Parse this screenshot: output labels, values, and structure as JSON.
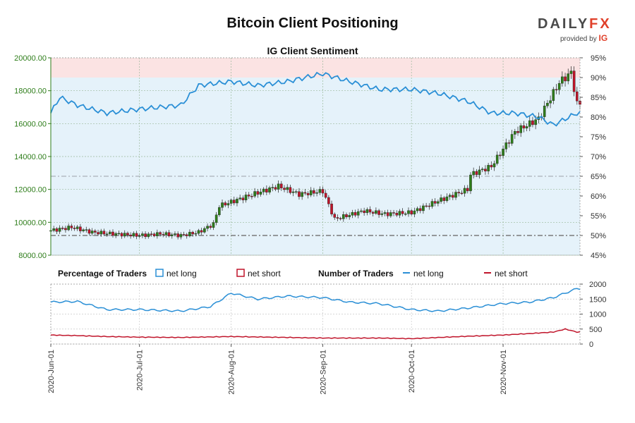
{
  "header": {
    "title": "Bitcoin Client Positioning",
    "brand_word": "DAILY",
    "brand_fx": "FX",
    "provided_by": "provided by",
    "provided_brand": "IG"
  },
  "colors": {
    "price_axis": "#2e7d1a",
    "sentiment_line": "#2a8fd6",
    "net_short_line": "#c0142a",
    "candle_up": "#2e7d1a",
    "candle_down": "#c0142a",
    "zone_short": "#fbe3e3",
    "zone_long": "#e5f2fa"
  },
  "legend": {
    "pct_heading": "Percentage of Traders",
    "pct_long": "net long",
    "pct_short": "net short",
    "num_heading": "Number of Traders",
    "num_long": "net long",
    "num_short": "net short"
  },
  "chart_data": [
    {
      "type": "candlestick",
      "title": "IG Client Sentiment",
      "ylim": [
        8000,
        20000
      ],
      "y_ticks": [
        "20000.00",
        "18000.00",
        "16000.00",
        "14000.00",
        "12000.00",
        "10000.00",
        "8000.00"
      ],
      "y2lim": [
        45,
        95
      ],
      "y2_ticks": [
        "95%",
        "90%",
        "85%",
        "80%",
        "75%",
        "70%",
        "65%",
        "60%",
        "55%",
        "50%",
        "45%"
      ],
      "reference_lines": [
        50,
        65
      ],
      "x_start": "2020-06-01",
      "x_end": "2020-11-27",
      "x_ticks": [
        "2020-Jun-01",
        "2020-Jul-01",
        "2020-Aug-01",
        "2020-Sep-01",
        "2020-Oct-01",
        "2020-Nov-01"
      ],
      "price_close": [
        {
          "date": "2020-06-01",
          "value": 9500
        },
        {
          "date": "2020-06-08",
          "value": 9700
        },
        {
          "date": "2020-06-15",
          "value": 9400
        },
        {
          "date": "2020-06-22",
          "value": 9300
        },
        {
          "date": "2020-07-01",
          "value": 9200
        },
        {
          "date": "2020-07-08",
          "value": 9300
        },
        {
          "date": "2020-07-15",
          "value": 9200
        },
        {
          "date": "2020-07-21",
          "value": 9400
        },
        {
          "date": "2020-07-26",
          "value": 9900
        },
        {
          "date": "2020-07-28",
          "value": 11000
        },
        {
          "date": "2020-08-02",
          "value": 11300
        },
        {
          "date": "2020-08-10",
          "value": 11800
        },
        {
          "date": "2020-08-17",
          "value": 12200
        },
        {
          "date": "2020-08-24",
          "value": 11700
        },
        {
          "date": "2020-09-01",
          "value": 11900
        },
        {
          "date": "2020-09-05",
          "value": 10200
        },
        {
          "date": "2020-09-15",
          "value": 10700
        },
        {
          "date": "2020-09-22",
          "value": 10500
        },
        {
          "date": "2020-10-01",
          "value": 10600
        },
        {
          "date": "2020-10-10",
          "value": 11300
        },
        {
          "date": "2020-10-20",
          "value": 12000
        },
        {
          "date": "2020-10-21",
          "value": 12900
        },
        {
          "date": "2020-10-28",
          "value": 13400
        },
        {
          "date": "2020-11-05",
          "value": 15500
        },
        {
          "date": "2020-11-13",
          "value": 16300
        },
        {
          "date": "2020-11-20",
          "value": 18500
        },
        {
          "date": "2020-11-24",
          "value": 19100
        },
        {
          "date": "2020-11-26",
          "value": 17200
        }
      ],
      "pct_net_long": [
        {
          "date": "2020-06-01",
          "value": 81
        },
        {
          "date": "2020-06-04",
          "value": 85
        },
        {
          "date": "2020-06-10",
          "value": 83
        },
        {
          "date": "2020-06-20",
          "value": 81
        },
        {
          "date": "2020-07-01",
          "value": 82
        },
        {
          "date": "2020-07-15",
          "value": 83
        },
        {
          "date": "2020-07-21",
          "value": 88
        },
        {
          "date": "2020-08-01",
          "value": 89
        },
        {
          "date": "2020-08-10",
          "value": 88
        },
        {
          "date": "2020-08-20",
          "value": 89
        },
        {
          "date": "2020-09-01",
          "value": 91
        },
        {
          "date": "2020-09-10",
          "value": 89
        },
        {
          "date": "2020-09-20",
          "value": 87
        },
        {
          "date": "2020-10-01",
          "value": 87
        },
        {
          "date": "2020-10-10",
          "value": 86
        },
        {
          "date": "2020-10-20",
          "value": 84
        },
        {
          "date": "2020-10-28",
          "value": 81
        },
        {
          "date": "2020-11-05",
          "value": 81
        },
        {
          "date": "2020-11-13",
          "value": 80
        },
        {
          "date": "2020-11-18",
          "value": 78
        },
        {
          "date": "2020-11-26",
          "value": 81
        }
      ]
    },
    {
      "type": "line",
      "ylim": [
        0,
        2000
      ],
      "y_ticks": [
        "2000",
        "1500",
        "1000",
        "500",
        "0"
      ],
      "series": [
        {
          "name": "net long",
          "points": [
            {
              "date": "2020-06-01",
              "value": 1400
            },
            {
              "date": "2020-06-10",
              "value": 1420
            },
            {
              "date": "2020-06-20",
              "value": 1150
            },
            {
              "date": "2020-07-01",
              "value": 1150
            },
            {
              "date": "2020-07-15",
              "value": 1100
            },
            {
              "date": "2020-07-25",
              "value": 1250
            },
            {
              "date": "2020-08-01",
              "value": 1700
            },
            {
              "date": "2020-08-10",
              "value": 1500
            },
            {
              "date": "2020-08-20",
              "value": 1600
            },
            {
              "date": "2020-09-01",
              "value": 1550
            },
            {
              "date": "2020-09-10",
              "value": 1400
            },
            {
              "date": "2020-09-20",
              "value": 1350
            },
            {
              "date": "2020-10-01",
              "value": 1150
            },
            {
              "date": "2020-10-10",
              "value": 1100
            },
            {
              "date": "2020-10-20",
              "value": 1200
            },
            {
              "date": "2020-11-01",
              "value": 1350
            },
            {
              "date": "2020-11-10",
              "value": 1400
            },
            {
              "date": "2020-11-18",
              "value": 1550
            },
            {
              "date": "2020-11-26",
              "value": 1850
            }
          ]
        },
        {
          "name": "net short",
          "points": [
            {
              "date": "2020-06-01",
              "value": 300
            },
            {
              "date": "2020-06-10",
              "value": 280
            },
            {
              "date": "2020-06-20",
              "value": 250
            },
            {
              "date": "2020-07-01",
              "value": 230
            },
            {
              "date": "2020-07-15",
              "value": 220
            },
            {
              "date": "2020-08-01",
              "value": 250
            },
            {
              "date": "2020-08-20",
              "value": 220
            },
            {
              "date": "2020-09-01",
              "value": 200
            },
            {
              "date": "2020-09-20",
              "value": 200
            },
            {
              "date": "2020-10-01",
              "value": 180
            },
            {
              "date": "2020-10-20",
              "value": 260
            },
            {
              "date": "2020-11-01",
              "value": 300
            },
            {
              "date": "2020-11-10",
              "value": 350
            },
            {
              "date": "2020-11-18",
              "value": 400
            },
            {
              "date": "2020-11-22",
              "value": 500
            },
            {
              "date": "2020-11-26",
              "value": 400
            }
          ]
        }
      ]
    }
  ]
}
